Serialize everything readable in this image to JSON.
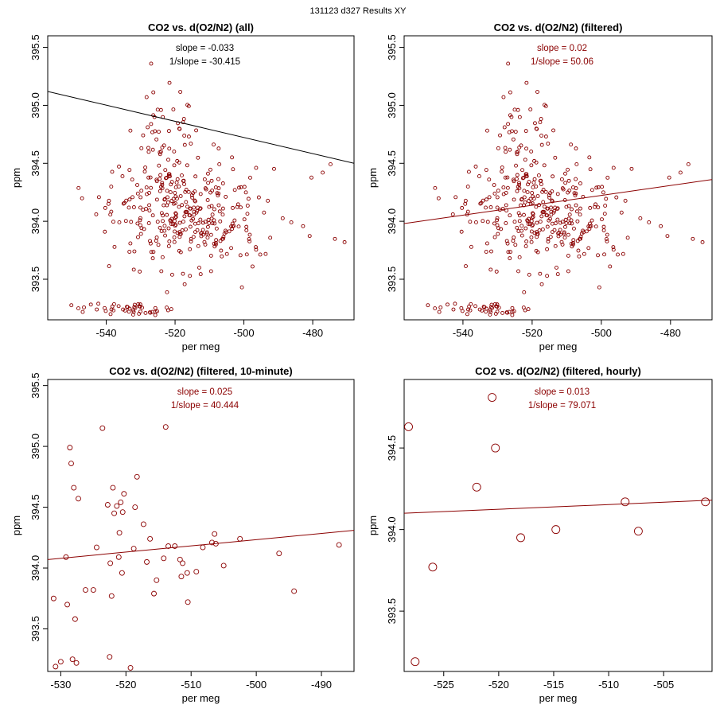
{
  "header": {
    "title": "131123   d327   Results XY"
  },
  "colors": {
    "points": "#8b0000",
    "fit_all": "#000000",
    "fit_filtered": "#8b0000"
  },
  "chart_data": [
    {
      "type": "scatter",
      "title": "CO2 vs. d(O2/N2) (all)",
      "xlabel": "per meg",
      "ylabel": "ppm",
      "xlim": [
        -557,
        -468
      ],
      "ylim": [
        393.15,
        395.6
      ],
      "xticks": [
        -540,
        -520,
        -500,
        -480
      ],
      "yticks": [
        393.5,
        394.0,
        394.5,
        395.0,
        395.5
      ],
      "slope_text": "slope = -0.033",
      "inv_slope_text": "1/slope = -30.415",
      "text_color": "#000000",
      "fit_line": {
        "color": "#000000",
        "x": [
          -557,
          -468
        ],
        "y": [
          395.12,
          394.5
        ]
      },
      "points_color": "#8b0000",
      "point_size": 2,
      "point_seed": 11,
      "n_points": 420,
      "points": []
    },
    {
      "type": "scatter",
      "title": "CO2 vs. d(O2/N2) (filtered)",
      "xlabel": "per meg",
      "ylabel": "ppm",
      "xlim": [
        -557,
        -468
      ],
      "ylim": [
        393.15,
        395.6
      ],
      "xticks": [
        -540,
        -520,
        -500,
        -480
      ],
      "yticks": [
        393.5,
        394.0,
        394.5,
        395.0,
        395.5
      ],
      "slope_text": "slope = 0.02",
      "inv_slope_text": "1/slope = 50.06",
      "text_color": "#8b0000",
      "fit_line": {
        "color": "#8b0000",
        "x": [
          -557,
          -468
        ],
        "y": [
          393.98,
          394.36
        ]
      },
      "points_color": "#8b0000",
      "point_size": 2,
      "point_seed": 11,
      "n_points": 420,
      "points": []
    },
    {
      "type": "scatter",
      "title": "CO2 vs. d(O2/N2) (filtered, 10-minute)",
      "xlabel": "per meg",
      "ylabel": "ppm",
      "xlim": [
        -532,
        -485
      ],
      "ylim": [
        393.15,
        395.55
      ],
      "xticks": [
        -530,
        -520,
        -510,
        -500,
        -490
      ],
      "yticks": [
        393.5,
        394.0,
        394.5,
        395.0,
        395.5
      ],
      "slope_text": "slope = 0.025",
      "inv_slope_text": "1/slope = 40.444",
      "text_color": "#8b0000",
      "fit_line": {
        "color": "#8b0000",
        "x": [
          -532,
          -485
        ],
        "y": [
          394.07,
          394.31
        ]
      },
      "points_color": "#8b0000",
      "point_size": 3,
      "points": [
        [
          -531.1,
          393.75
        ],
        [
          -530.8,
          393.19
        ],
        [
          -530,
          393.23
        ],
        [
          -529.2,
          394.09
        ],
        [
          -529,
          393.7
        ],
        [
          -528.6,
          394.99
        ],
        [
          -528.4,
          394.86
        ],
        [
          -528.2,
          393.25
        ],
        [
          -528,
          394.66
        ],
        [
          -527.8,
          393.58
        ],
        [
          -527.6,
          393.22
        ],
        [
          -527.3,
          394.57
        ],
        [
          -526.2,
          393.82
        ],
        [
          -525,
          393.82
        ],
        [
          -524.5,
          394.17
        ],
        [
          -523.6,
          395.15
        ],
        [
          -522.8,
          394.52
        ],
        [
          -522.5,
          393.27
        ],
        [
          -522.4,
          394.04
        ],
        [
          -522.2,
          393.77
        ],
        [
          -522,
          394.66
        ],
        [
          -521.8,
          394.45
        ],
        [
          -521.4,
          394.51
        ],
        [
          -521.1,
          394.09
        ],
        [
          -521,
          394.29
        ],
        [
          -520.8,
          394.54
        ],
        [
          -520.6,
          393.96
        ],
        [
          -520.5,
          394.46
        ],
        [
          -520.3,
          394.61
        ],
        [
          -519.3,
          393.18
        ],
        [
          -518.8,
          394.16
        ],
        [
          -518.6,
          394.5
        ],
        [
          -518.3,
          394.75
        ],
        [
          -517.3,
          394.36
        ],
        [
          -516.8,
          394.05
        ],
        [
          -516.3,
          394.24
        ],
        [
          -515.7,
          393.79
        ],
        [
          -515.3,
          393.9
        ],
        [
          -514.2,
          394.08
        ],
        [
          -513.9,
          395.16
        ],
        [
          -513.5,
          394.18
        ],
        [
          -512.5,
          394.18
        ],
        [
          -511.7,
          394.07
        ],
        [
          -511.5,
          393.93
        ],
        [
          -511.3,
          394.04
        ],
        [
          -510.6,
          393.96
        ],
        [
          -510.5,
          393.72
        ],
        [
          -509.2,
          393.97
        ],
        [
          -508.2,
          394.17
        ],
        [
          -506.8,
          394.21
        ],
        [
          -506.4,
          394.28
        ],
        [
          -506.2,
          394.2
        ],
        [
          -505,
          394.02
        ],
        [
          -502.5,
          394.24
        ],
        [
          -496.5,
          394.12
        ],
        [
          -494.2,
          393.81
        ],
        [
          -487.3,
          394.19
        ]
      ]
    },
    {
      "type": "scatter",
      "title": "CO2 vs. d(O2/N2) (filtered, hourly)",
      "xlabel": "per meg",
      "ylabel": "ppm",
      "xlim": [
        -528.6,
        -500.6
      ],
      "ylim": [
        393.13,
        394.92
      ],
      "xticks": [
        -525,
        -520,
        -515,
        -510,
        -505
      ],
      "yticks": [
        393.5,
        394.0,
        394.5
      ],
      "slope_text": "slope = 0.013",
      "inv_slope_text": "1/slope = 79.071",
      "text_color": "#8b0000",
      "fit_line": {
        "color": "#8b0000",
        "x": [
          -528.6,
          -500.6
        ],
        "y": [
          394.1,
          394.18
        ]
      },
      "points_color": "#8b0000",
      "point_size": 5,
      "points": [
        [
          -528.2,
          394.63
        ],
        [
          -527.6,
          393.19
        ],
        [
          -526,
          393.77
        ],
        [
          -522,
          394.26
        ],
        [
          -520.6,
          394.81
        ],
        [
          -520.3,
          394.5
        ],
        [
          -518,
          393.95
        ],
        [
          -514.8,
          394
        ],
        [
          -508.5,
          394.17
        ],
        [
          -507.3,
          393.99
        ],
        [
          -501.2,
          394.17
        ]
      ]
    }
  ]
}
